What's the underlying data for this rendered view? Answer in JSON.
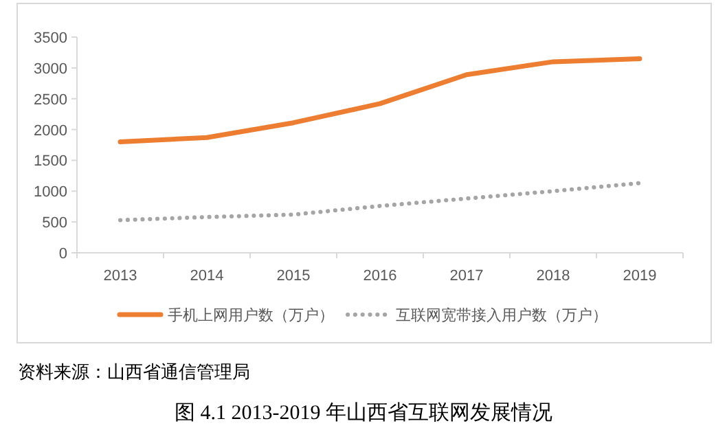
{
  "chart_data": {
    "type": "line",
    "title": "图 4.1 2013-2019 年山西省互联网发展情况",
    "annotations": [
      "资料来源：山西省通信管理局"
    ],
    "categories": [
      "2013",
      "2014",
      "2015",
      "2016",
      "2017",
      "2018",
      "2019"
    ],
    "series": [
      {
        "name": "手机上网用户数（万户）",
        "color": "#ed7d31",
        "line_style": "solid",
        "values": [
          1800,
          1870,
          2110,
          2420,
          2890,
          3100,
          3150
        ]
      },
      {
        "name": "互联网宽带接入用户数（万户）",
        "color": "#a5a5a5",
        "line_style": "dotted",
        "values": [
          530,
          580,
          620,
          760,
          880,
          1000,
          1130
        ]
      }
    ],
    "ylim": [
      0,
      3500
    ],
    "yticks": [
      0,
      500,
      1000,
      1500,
      2000,
      2500,
      3000,
      3500
    ],
    "grid": false,
    "legend": "bottom",
    "marker": "none"
  }
}
